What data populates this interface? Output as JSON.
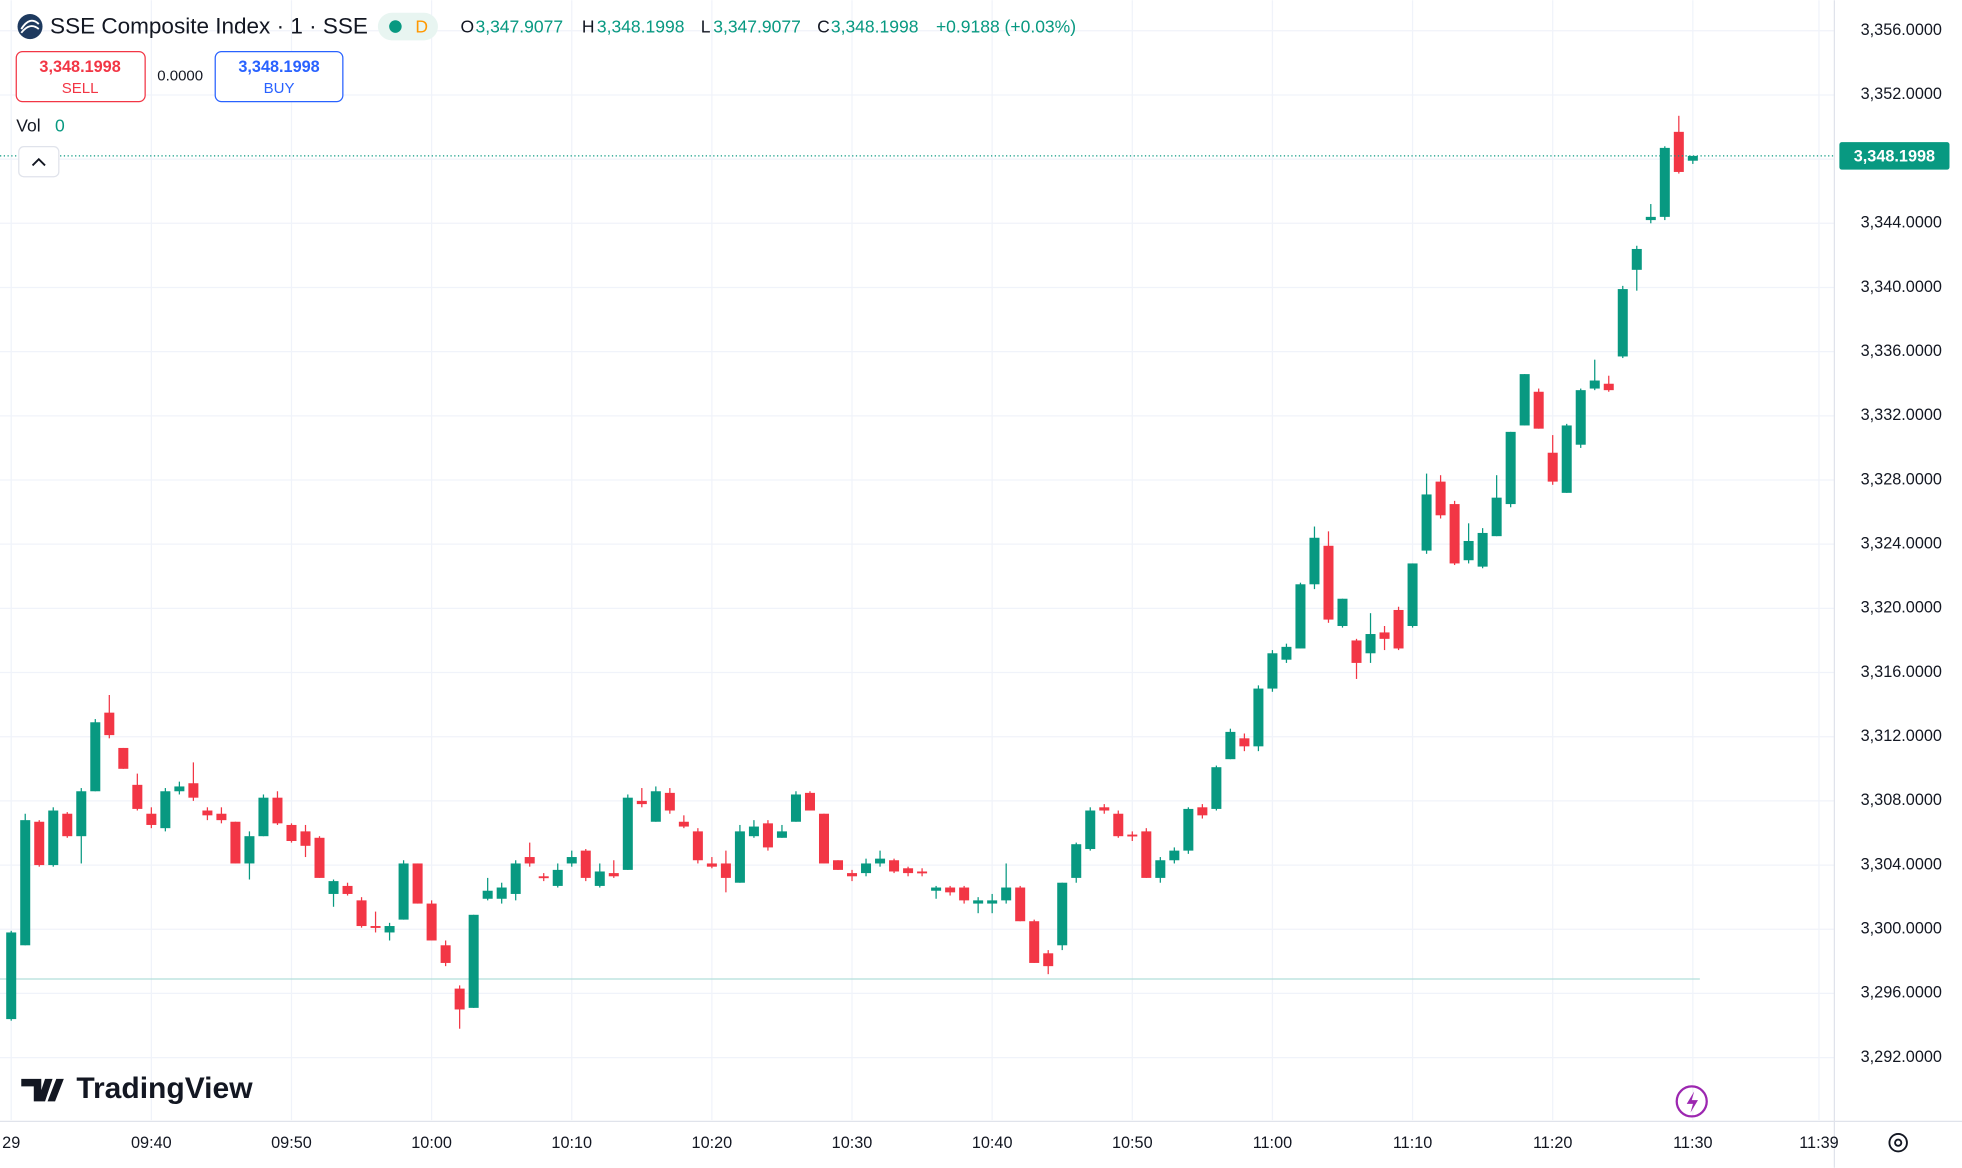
{
  "chart_data": {
    "type": "candlestick",
    "title": "SSE Composite Index · 1 · SSE",
    "interval_badge": "D",
    "ohlc_legend": {
      "o_label": "O",
      "o": "3,347.9077",
      "h_label": "H",
      "h": "3,348.1998",
      "l_label": "L",
      "l": "3,347.9077",
      "c_label": "C",
      "c": "3,348.1998",
      "change": "+0.9188 (+0.03%)"
    },
    "sell": {
      "price": "3,348.1998",
      "label": "SELL"
    },
    "spread": "0.0000",
    "buy": {
      "price": "3,348.1998",
      "label": "BUY"
    },
    "volume_label": "Vol",
    "volume_value": "0",
    "brand": "TradingView",
    "up_color": "#089981",
    "down_color": "#f23645",
    "last_price": {
      "value": 3348.1998,
      "label": "3,348.1998"
    },
    "reference_line": 3296.9,
    "ylim": [
      3288.1,
      3357.9
    ],
    "yticks": [
      {
        "value": 3292,
        "label": "3,292.0000"
      },
      {
        "value": 3296,
        "label": "3,296.0000"
      },
      {
        "value": 3300,
        "label": "3,300.0000"
      },
      {
        "value": 3304,
        "label": "3,304.0000"
      },
      {
        "value": 3308,
        "label": "3,308.0000"
      },
      {
        "value": 3312,
        "label": "3,312.0000"
      },
      {
        "value": 3316,
        "label": "3,316.0000"
      },
      {
        "value": 3320,
        "label": "3,320.0000"
      },
      {
        "value": 3324,
        "label": "3,324.0000"
      },
      {
        "value": 3328,
        "label": "3,328.0000"
      },
      {
        "value": 3332,
        "label": "3,332.0000"
      },
      {
        "value": 3336,
        "label": "3,336.0000"
      },
      {
        "value": 3340,
        "label": "3,340.0000"
      },
      {
        "value": 3344,
        "label": "3,344.0000"
      },
      {
        "value": 3348,
        "label": "3,348.0000"
      },
      {
        "value": 3352,
        "label": "3,352.0000"
      },
      {
        "value": 3356,
        "label": "3,356.0000"
      }
    ],
    "xlim": [
      -0.8,
      130.1
    ],
    "xticks": [
      {
        "value": 0,
        "label": "29"
      },
      {
        "value": 10,
        "label": "09:40"
      },
      {
        "value": 20,
        "label": "09:50"
      },
      {
        "value": 30,
        "label": "10:00"
      },
      {
        "value": 40,
        "label": "10:10"
      },
      {
        "value": 50,
        "label": "10:20"
      },
      {
        "value": 60,
        "label": "10:30"
      },
      {
        "value": 70,
        "label": "10:40"
      },
      {
        "value": 80,
        "label": "10:50"
      },
      {
        "value": 90,
        "label": "11:00"
      },
      {
        "value": 100,
        "label": "11:10"
      },
      {
        "value": 110,
        "label": "11:20"
      },
      {
        "value": 120,
        "label": "11:30"
      },
      {
        "value": 129,
        "label": "11:39"
      }
    ],
    "grid": true,
    "series": [
      {
        "name": "SSE Composite Index",
        "open": [
          3294.4,
          3299.0,
          3306.7,
          3304.0,
          3307.2,
          3305.8,
          3308.6,
          3313.5,
          3311.3,
          3309.0,
          3307.2,
          3306.3,
          3308.6,
          3309.1,
          3307.4,
          3307.2,
          3306.7,
          3304.1,
          3305.8,
          3308.2,
          3306.5,
          3306.1,
          3305.7,
          3302.2,
          3302.7,
          3301.8,
          3300.2,
          3299.8,
          3300.6,
          3304.1,
          3301.6,
          3299.0,
          3296.3,
          3295.1,
          3301.9,
          3301.9,
          3302.2,
          3304.5,
          3303.3,
          3302.7,
          3304.1,
          3304.9,
          3302.7,
          3303.5,
          3303.7,
          3308.0,
          3306.7,
          3308.5,
          3306.7,
          3306.1,
          3304.1,
          3304.1,
          3302.9,
          3305.8,
          3306.6,
          3305.7,
          3306.7,
          3308.5,
          3307.2,
          3304.3,
          3303.5,
          3303.5,
          3304.1,
          3304.3,
          3303.8,
          3303.6,
          3302.4,
          3302.6,
          3302.6,
          3301.6,
          3301.6,
          3301.8,
          3302.6,
          3300.5,
          3298.5,
          3299.0,
          3303.2,
          3305.0,
          3307.6,
          3307.2,
          3305.9,
          3306.1,
          3303.2,
          3304.3,
          3304.9,
          3307.6,
          3307.5,
          3310.6,
          3311.9,
          3311.4,
          3315.0,
          3316.8,
          3317.5,
          3321.5,
          3323.9,
          3318.9,
          3318.0,
          3317.2,
          3318.5,
          3319.9,
          3318.9,
          3323.6,
          3327.9,
          3326.5,
          3323.0,
          3322.6,
          3324.5,
          3326.5,
          3331.4,
          3333.5,
          3329.7,
          3327.2,
          3330.2,
          3333.7,
          3334.0,
          3335.7,
          3341.1,
          3344.2,
          3344.4,
          3349.7,
          3347.9
        ],
        "high": [
          3299.9,
          3307.2,
          3306.8,
          3307.6,
          3307.3,
          3308.8,
          3313.1,
          3314.6,
          3311.3,
          3309.7,
          3307.6,
          3308.8,
          3309.2,
          3310.4,
          3307.6,
          3307.6,
          3306.7,
          3306.1,
          3308.4,
          3308.6,
          3306.6,
          3306.5,
          3305.8,
          3303.1,
          3302.9,
          3302.0,
          3301.1,
          3300.4,
          3304.3,
          3304.1,
          3301.8,
          3299.3,
          3296.5,
          3300.9,
          3303.2,
          3302.9,
          3304.3,
          3305.4,
          3303.5,
          3304.1,
          3304.9,
          3305.0,
          3304.1,
          3304.3,
          3308.4,
          3308.8,
          3308.9,
          3308.8,
          3307.1,
          3306.3,
          3304.5,
          3304.9,
          3306.5,
          3306.8,
          3306.8,
          3306.5,
          3308.6,
          3308.6,
          3307.2,
          3304.3,
          3303.7,
          3304.4,
          3304.9,
          3304.4,
          3303.9,
          3303.8,
          3302.7,
          3302.7,
          3302.7,
          3302.0,
          3302.2,
          3304.1,
          3302.7,
          3300.6,
          3298.7,
          3302.9,
          3305.4,
          3307.6,
          3307.8,
          3307.4,
          3306.1,
          3306.3,
          3304.5,
          3305.1,
          3307.6,
          3307.8,
          3310.2,
          3312.5,
          3312.2,
          3315.2,
          3317.4,
          3317.8,
          3321.6,
          3325.1,
          3324.8,
          3320.6,
          3318.1,
          3319.7,
          3318.9,
          3320.1,
          3322.8,
          3328.4,
          3328.3,
          3326.7,
          3325.3,
          3325.0,
          3328.3,
          3331.0,
          3334.6,
          3333.7,
          3330.8,
          3331.5,
          3333.7,
          3335.5,
          3334.5,
          3340.1,
          3342.6,
          3345.2,
          3348.8,
          3350.7,
          3348.2
        ],
        "low": [
          3294.3,
          3299.0,
          3303.9,
          3303.9,
          3305.7,
          3304.1,
          3308.6,
          3311.9,
          3310.0,
          3307.4,
          3306.3,
          3306.1,
          3308.4,
          3308.0,
          3306.8,
          3306.6,
          3304.1,
          3303.1,
          3305.8,
          3306.5,
          3305.4,
          3304.5,
          3303.2,
          3301.4,
          3302.1,
          3300.1,
          3299.8,
          3299.3,
          3300.6,
          3301.6,
          3299.3,
          3297.7,
          3293.8,
          3295.1,
          3301.8,
          3301.6,
          3301.8,
          3303.9,
          3303.0,
          3302.6,
          3303.9,
          3303.0,
          3302.6,
          3303.2,
          3303.7,
          3307.6,
          3306.7,
          3307.2,
          3306.3,
          3304.1,
          3303.8,
          3302.3,
          3302.9,
          3305.7,
          3304.9,
          3305.7,
          3306.7,
          3307.4,
          3304.1,
          3303.7,
          3303.0,
          3303.3,
          3303.9,
          3303.5,
          3303.3,
          3303.3,
          3301.9,
          3302.1,
          3301.6,
          3301.0,
          3301.0,
          3301.6,
          3300.5,
          3297.9,
          3297.2,
          3298.7,
          3302.9,
          3304.9,
          3307.2,
          3305.7,
          3305.5,
          3303.2,
          3302.9,
          3304.1,
          3304.7,
          3306.9,
          3307.4,
          3310.6,
          3311.1,
          3311.1,
          3314.8,
          3316.6,
          3317.5,
          3321.2,
          3319.1,
          3318.8,
          3315.6,
          3316.6,
          3317.4,
          3317.4,
          3318.8,
          3323.4,
          3325.6,
          3322.7,
          3322.8,
          3322.5,
          3324.5,
          3326.3,
          3331.4,
          3331.2,
          3327.7,
          3327.2,
          3330.0,
          3333.6,
          3333.5,
          3335.6,
          3339.8,
          3344.0,
          3344.2,
          3347.1,
          3347.7
        ],
        "close": [
          3299.8,
          3306.8,
          3304.0,
          3307.4,
          3305.8,
          3308.6,
          3312.9,
          3312.1,
          3310.0,
          3307.5,
          3306.5,
          3308.6,
          3308.9,
          3308.2,
          3307.1,
          3306.8,
          3304.1,
          3305.8,
          3308.2,
          3306.6,
          3305.5,
          3305.2,
          3303.2,
          3303.0,
          3302.2,
          3300.2,
          3300.1,
          3300.2,
          3304.1,
          3301.6,
          3299.3,
          3297.9,
          3295.0,
          3300.9,
          3302.4,
          3302.6,
          3304.1,
          3304.1,
          3303.2,
          3303.7,
          3304.5,
          3303.2,
          3303.6,
          3303.3,
          3308.2,
          3307.8,
          3308.6,
          3307.4,
          3306.4,
          3304.3,
          3303.9,
          3303.2,
          3306.1,
          3306.4,
          3305.1,
          3306.1,
          3308.4,
          3307.4,
          3304.1,
          3303.7,
          3303.3,
          3304.1,
          3304.4,
          3303.6,
          3303.5,
          3303.5,
          3302.6,
          3302.3,
          3301.8,
          3301.8,
          3301.8,
          3302.6,
          3300.5,
          3297.9,
          3297.7,
          3302.9,
          3305.3,
          3307.4,
          3307.4,
          3305.8,
          3305.8,
          3303.2,
          3304.3,
          3304.9,
          3307.5,
          3307.1,
          3310.1,
          3312.3,
          3311.4,
          3315.0,
          3317.2,
          3317.6,
          3321.5,
          3324.4,
          3319.3,
          3320.6,
          3316.6,
          3318.4,
          3318.1,
          3317.5,
          3322.8,
          3327.1,
          3325.8,
          3322.8,
          3324.2,
          3324.7,
          3326.9,
          3331.0,
          3334.6,
          3331.2,
          3327.9,
          3331.4,
          3333.6,
          3334.2,
          3333.6,
          3339.9,
          3342.4,
          3344.4,
          3348.7,
          3347.2,
          3348.2
        ]
      }
    ]
  }
}
